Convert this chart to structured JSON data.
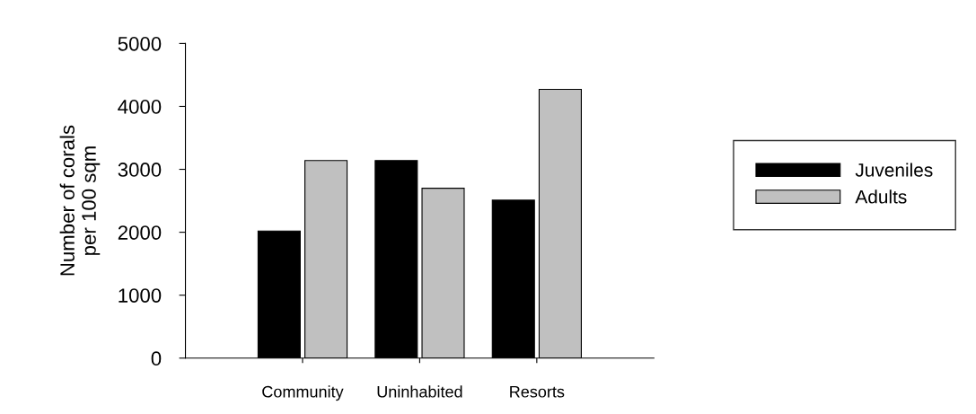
{
  "chart_data": {
    "type": "bar",
    "ylabel": "Number of corals\nper 100 sqm",
    "categories": [
      "Community",
      "Uninhabited",
      "Resorts"
    ],
    "series": [
      {
        "name": "Juveniles",
        "color": "#000000",
        "values": [
          2020,
          3140,
          2510
        ]
      },
      {
        "name": "Adults",
        "color": "#c0c0c0",
        "values": [
          3140,
          2700,
          4270
        ]
      }
    ],
    "ylim": [
      0,
      5000
    ],
    "yticks": [
      0,
      1000,
      2000,
      3000,
      4000,
      5000
    ],
    "grid": false,
    "legend": "right"
  }
}
